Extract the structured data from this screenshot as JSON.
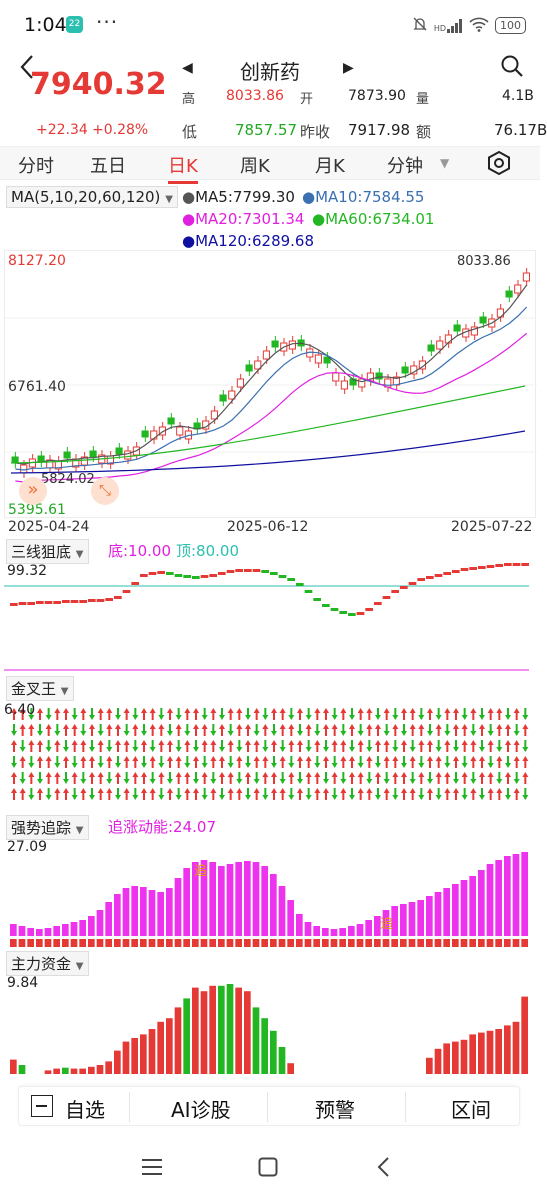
{
  "status_bar": {
    "time": "1:04",
    "notif": "22",
    "dots": "···",
    "battery": "100",
    "net": "HD",
    "sub": "6"
  },
  "nav": {
    "title": "创新药",
    "back": "‹"
  },
  "quote": {
    "price": "7940.32",
    "change": "+22.34",
    "change_pct": "+0.28%",
    "row1": [
      {
        "k": "高",
        "v": "8033.86"
      },
      {
        "k": "开",
        "v": "7873.90"
      },
      {
        "k": "量",
        "v": "4.1B"
      }
    ],
    "row2": [
      {
        "k": "低",
        "v": "7857.57"
      },
      {
        "k": "昨收",
        "v": "7917.98"
      },
      {
        "k": "额",
        "v": "76.17B"
      }
    ]
  },
  "tabs": [
    "分时",
    "五日",
    "日K",
    "周K",
    "月K",
    "分钟"
  ],
  "active_tab": "日K",
  "ma": {
    "selector": "MA(5,10,20,60,120)",
    "items": [
      {
        "label": "MA5:7799.30",
        "color": "#555555"
      },
      {
        "label": "MA10:7584.55",
        "color": "#3a6fb0"
      },
      {
        "label": "MA20:7301.34",
        "color": "#e020e0"
      },
      {
        "label": "MA60:6734.01",
        "color": "#22b722"
      },
      {
        "label": "MA120:6289.68",
        "color": "#1010a0"
      }
    ]
  },
  "kchart": {
    "y_top": "8127.20",
    "y_mid": "6761.40",
    "y_bottom": "5395.61",
    "high_label": "8033.86",
    "low_label": "5824.02",
    "dates": [
      "2025-04-24",
      "2025-06-12",
      "2025-07-22"
    ]
  },
  "ind1": {
    "name": "三线狙底",
    "bottom_label": "底:10.00",
    "top_label": "顶:80.00",
    "value": "99.32"
  },
  "ind2": {
    "name": "金叉王",
    "value": "6.40"
  },
  "ind3": {
    "name": "强势追踪",
    "label": "追涨动能:24.07",
    "value": "27.09",
    "mark": "追"
  },
  "ind4": {
    "name": "主力资金",
    "value": "9.84"
  },
  "bottom": {
    "watch": "自选",
    "ai": "AI诊股",
    "alert": "预警",
    "range": "区间"
  },
  "chart_data": {
    "type": "candlestick",
    "title": "创新药",
    "y_range": [
      5395.61,
      8127.2
    ],
    "x_ticks": [
      "2025-04-24",
      "2025-06-12",
      "2025-07-22"
    ],
    "indicators": {
      "MA5": 7799.3,
      "MA10": 7584.55,
      "MA20": 7301.34,
      "MA60": 6734.01,
      "MA120": 6289.68
    },
    "period_high": 8033.86,
    "period_low": 5824.02
  }
}
